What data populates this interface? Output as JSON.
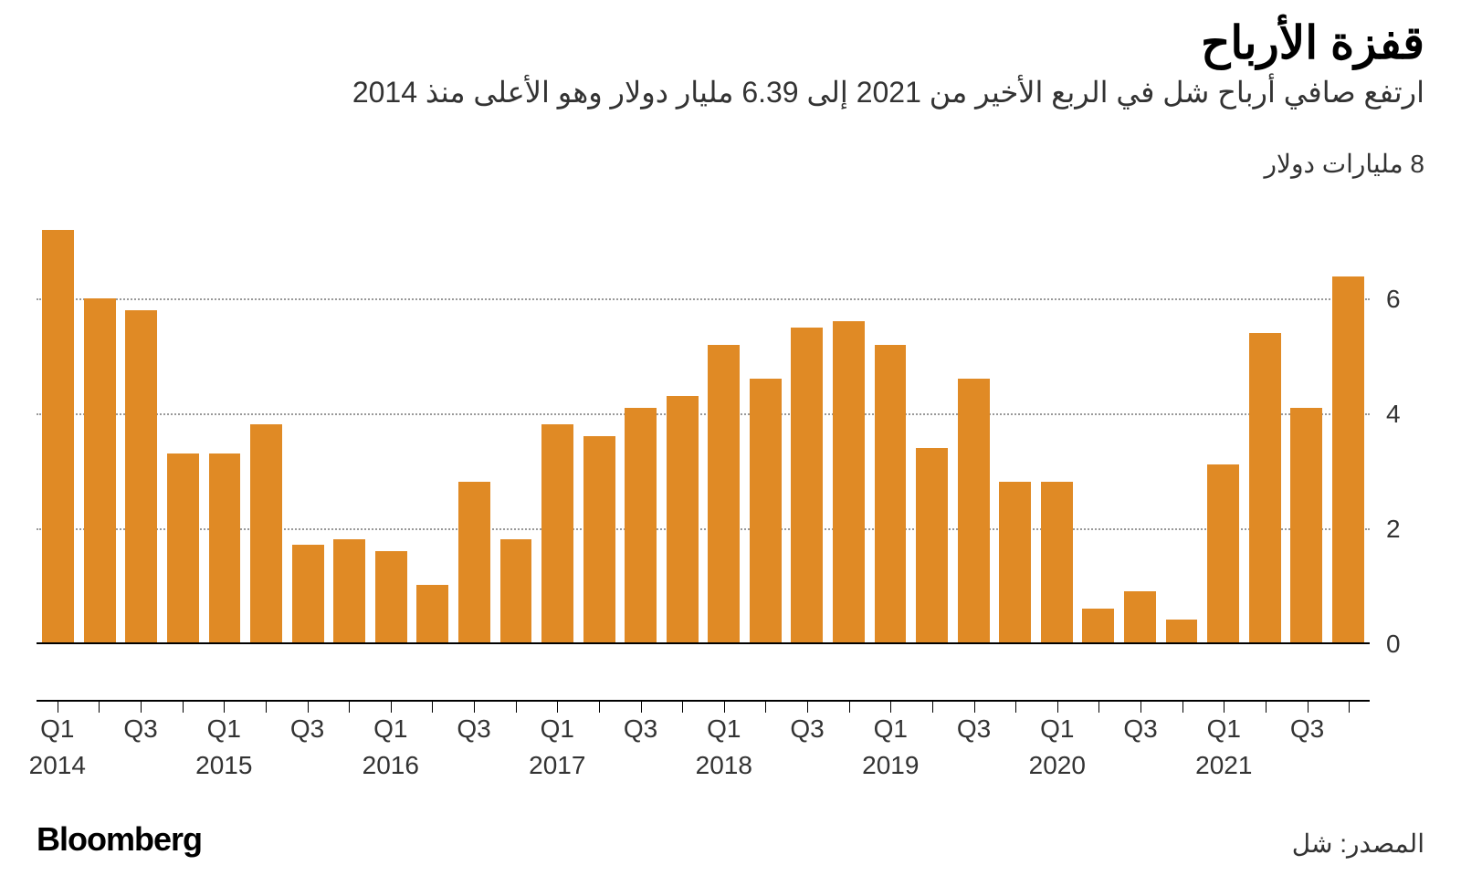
{
  "header": {
    "title": "قفزة الأرباح",
    "subtitle": "ارتفع صافي أرباح شل في الربع الأخير من 2021 إلى 6.39 مليار دولار وهو الأعلى منذ 2014"
  },
  "chart": {
    "type": "bar",
    "unit_label": "8 مليارات دولار",
    "bar_color": "#e08a25",
    "background_color": "#ffffff",
    "grid_color": "#999999",
    "axis_color": "#000000",
    "y": {
      "min": -1,
      "max": 8,
      "ticks": [
        0,
        2,
        4,
        6,
        8
      ],
      "tick_labels": [
        "0",
        "2",
        "4",
        "6",
        ""
      ]
    },
    "x": {
      "quarter_labels": [
        "Q1",
        "",
        "Q3",
        "",
        "Q1",
        "",
        "Q3",
        "",
        "Q1",
        "",
        "Q3",
        "",
        "Q1",
        "",
        "Q3",
        "",
        "Q1",
        "",
        "Q3",
        "",
        "Q1",
        "",
        "Q3",
        "",
        "Q1",
        "",
        "Q3",
        "",
        "Q1",
        "",
        "Q3",
        ""
      ],
      "year_labels": {
        "0": "2014",
        "4": "2015",
        "8": "2016",
        "12": "2017",
        "16": "2018",
        "20": "2019",
        "24": "2020",
        "28": "2021"
      }
    },
    "values": [
      7.2,
      6.0,
      5.8,
      3.3,
      3.3,
      3.8,
      1.7,
      1.8,
      1.6,
      1.0,
      2.8,
      1.8,
      3.8,
      3.6,
      4.1,
      4.3,
      5.2,
      4.6,
      5.5,
      5.6,
      5.2,
      3.4,
      4.6,
      2.8,
      2.8,
      0.6,
      0.9,
      0.4,
      3.1,
      5.4,
      4.1,
      6.39
    ]
  },
  "footer": {
    "brand": "Bloomberg",
    "source": "المصدر: شل"
  }
}
